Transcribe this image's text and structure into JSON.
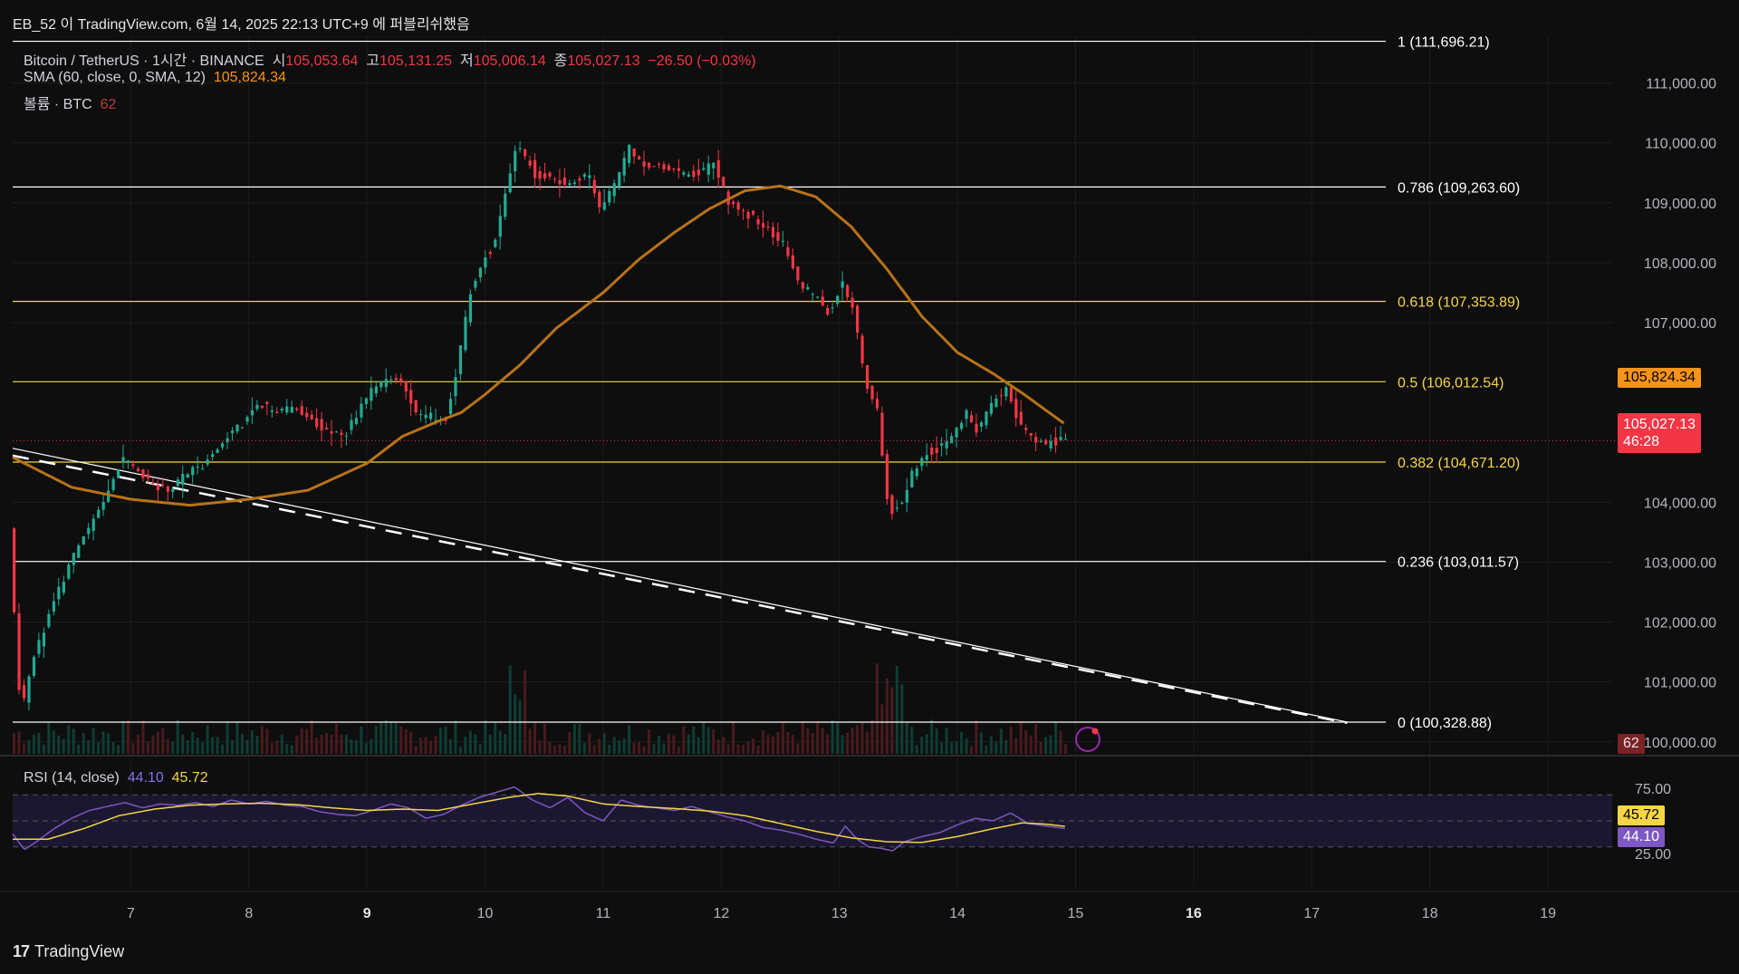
{
  "header": {
    "publisher": "EB_52 이 TradingView.com, 6월 14, 2025 22:13 UTC+9 에 퍼블리쉬했음"
  },
  "legend": {
    "symbol": "Bitcoin / TetherUS · 1시간 · BINANCE",
    "open_label": "시",
    "open": "105,053.64",
    "high_label": "고",
    "high": "105,131.25",
    "low_label": "저",
    "low": "105,006.14",
    "close_label": "종",
    "close": "105,027.13",
    "change": "−26.50 (−0.03%)",
    "sma_label": "SMA (60, close, 0, SMA, 12)",
    "sma_value": "105,824.34",
    "volume_label": "볼륨 · BTC",
    "volume_value": "62"
  },
  "rsi_legend": {
    "label": "RSI (14, close)",
    "rsi": "44.10",
    "rsi_ma": "45.72"
  },
  "tags": {
    "sma": "105,824.34",
    "price": "105,027.13",
    "countdown": "46:28",
    "volume": "62",
    "rsi_ma": "45.72",
    "rsi": "44.10"
  },
  "brand": {
    "name": "TradingView"
  },
  "colors": {
    "up": "#22ab94",
    "down": "#f23645",
    "sma": "#b8721a",
    "rsi": "#7e57c2",
    "rsi_ma": "#f5d547",
    "fib_white": "#ffffff",
    "fib_yellow": "#f5d547",
    "background": "#0e0e0e"
  },
  "chart_data": {
    "type": "candlestick",
    "price_axis": {
      "ticks": [
        "111,000.00",
        "110,000.00",
        "109,000.00",
        "108,000.00",
        "107,000.00",
        "104,000.00",
        "103,000.00",
        "102,000.00",
        "101,000.00",
        "100,000.00"
      ],
      "values": [
        111000,
        110000,
        109000,
        108000,
        107000,
        104000,
        103000,
        102000,
        101000,
        100000
      ]
    },
    "time_axis": {
      "ticks": [
        "7",
        "8",
        "9",
        "10",
        "11",
        "12",
        "13",
        "14",
        "15",
        "16",
        "17",
        "18",
        "19"
      ],
      "bold": [
        "9",
        "16"
      ]
    },
    "fibonacci": [
      {
        "label": "1 (111,696.21)",
        "level": 1,
        "price": 111696.21,
        "color": "white"
      },
      {
        "label": "0.786 (109,263.60)",
        "level": 0.786,
        "price": 109263.6,
        "color": "white"
      },
      {
        "label": "0.618 (107,353.89)",
        "level": 0.618,
        "price": 107353.89,
        "color": "yellow"
      },
      {
        "label": "0.5 (106,012.54)",
        "level": 0.5,
        "price": 106012.54,
        "color": "yellow"
      },
      {
        "label": "0.382 (104,671.20)",
        "level": 0.382,
        "price": 104671.2,
        "color": "yellow"
      },
      {
        "label": "0.236 (103,011.57)",
        "level": 0.236,
        "price": 103011.57,
        "color": "white"
      },
      {
        "label": "0 (100,328.88)",
        "level": 0,
        "price": 100328.88,
        "color": "white"
      }
    ],
    "current_price": 105027.13,
    "sma_value": 105824.34,
    "trendline": {
      "x_start": 6.0,
      "y_start": 104900,
      "x_end": 17.3,
      "y_end": 100330
    },
    "price_path": [
      [
        6.0,
        103500
      ],
      [
        6.1,
        100400
      ],
      [
        6.2,
        101400
      ],
      [
        6.35,
        102200
      ],
      [
        6.5,
        102900
      ],
      [
        6.65,
        103500
      ],
      [
        6.8,
        104000
      ],
      [
        6.95,
        104700
      ],
      [
        7.05,
        104600
      ],
      [
        7.2,
        104300
      ],
      [
        7.35,
        104200
      ],
      [
        7.5,
        104500
      ],
      [
        7.65,
        104600
      ],
      [
        7.8,
        105000
      ],
      [
        7.95,
        105300
      ],
      [
        8.1,
        105600
      ],
      [
        8.25,
        105500
      ],
      [
        8.4,
        105600
      ],
      [
        8.55,
        105400
      ],
      [
        8.7,
        105200
      ],
      [
        8.85,
        105150
      ],
      [
        9.0,
        105700
      ],
      [
        9.15,
        106000
      ],
      [
        9.3,
        106050
      ],
      [
        9.45,
        105500
      ],
      [
        9.6,
        105400
      ],
      [
        9.7,
        105400
      ],
      [
        9.8,
        106300
      ],
      [
        9.9,
        107500
      ],
      [
        10.0,
        108000
      ],
      [
        10.1,
        108300
      ],
      [
        10.2,
        109100
      ],
      [
        10.3,
        110000
      ],
      [
        10.45,
        109500
      ],
      [
        10.6,
        109400
      ],
      [
        10.75,
        109300
      ],
      [
        10.9,
        109500
      ],
      [
        11.0,
        108900
      ],
      [
        11.1,
        109200
      ],
      [
        11.25,
        109900
      ],
      [
        11.4,
        109600
      ],
      [
        11.55,
        109600
      ],
      [
        11.7,
        109450
      ],
      [
        11.85,
        109500
      ],
      [
        11.95,
        109700
      ],
      [
        12.1,
        109000
      ],
      [
        12.25,
        108800
      ],
      [
        12.4,
        108600
      ],
      [
        12.55,
        108300
      ],
      [
        12.7,
        107600
      ],
      [
        12.85,
        107400
      ],
      [
        12.95,
        107100
      ],
      [
        13.05,
        107700
      ],
      [
        13.15,
        107200
      ],
      [
        13.25,
        106000
      ],
      [
        13.35,
        105500
      ],
      [
        13.45,
        103800
      ],
      [
        13.55,
        104000
      ],
      [
        13.65,
        104500
      ],
      [
        13.75,
        104800
      ],
      [
        13.85,
        104900
      ],
      [
        14.0,
        105100
      ],
      [
        14.1,
        105500
      ],
      [
        14.2,
        105200
      ],
      [
        14.3,
        105600
      ],
      [
        14.45,
        105900
      ],
      [
        14.55,
        105300
      ],
      [
        14.65,
        105100
      ],
      [
        14.75,
        104950
      ],
      [
        14.85,
        105030
      ],
      [
        14.92,
        105027
      ]
    ],
    "sma_path": [
      [
        6.0,
        104750
      ],
      [
        6.5,
        104250
      ],
      [
        7.0,
        104050
      ],
      [
        7.5,
        103950
      ],
      [
        8.0,
        104050
      ],
      [
        8.5,
        104200
      ],
      [
        9.0,
        104650
      ],
      [
        9.3,
        105100
      ],
      [
        9.6,
        105350
      ],
      [
        9.8,
        105500
      ],
      [
        10.0,
        105800
      ],
      [
        10.3,
        106300
      ],
      [
        10.6,
        106900
      ],
      [
        11.0,
        107500
      ],
      [
        11.3,
        108050
      ],
      [
        11.6,
        108500
      ],
      [
        11.9,
        108900
      ],
      [
        12.2,
        109200
      ],
      [
        12.5,
        109280
      ],
      [
        12.8,
        109100
      ],
      [
        13.1,
        108600
      ],
      [
        13.4,
        107900
      ],
      [
        13.7,
        107100
      ],
      [
        14.0,
        106500
      ],
      [
        14.3,
        106150
      ],
      [
        14.55,
        105820
      ],
      [
        14.9,
        105320
      ]
    ],
    "rsi_axis": {
      "ticks": [
        "75.00",
        "25.00"
      ],
      "values": [
        75,
        25
      ],
      "bands": [
        70,
        50,
        30
      ]
    },
    "rsi_path": [
      [
        6.0,
        40
      ],
      [
        6.1,
        28
      ],
      [
        6.2,
        34
      ],
      [
        6.35,
        44
      ],
      [
        6.5,
        52
      ],
      [
        6.65,
        58
      ],
      [
        6.8,
        61
      ],
      [
        6.95,
        64
      ],
      [
        7.1,
        60
      ],
      [
        7.25,
        63
      ],
      [
        7.4,
        62
      ],
      [
        7.55,
        64
      ],
      [
        7.7,
        61
      ],
      [
        7.85,
        66
      ],
      [
        8.0,
        63
      ],
      [
        8.15,
        65
      ],
      [
        8.3,
        62
      ],
      [
        8.45,
        61
      ],
      [
        8.6,
        57
      ],
      [
        8.75,
        55
      ],
      [
        8.9,
        54
      ],
      [
        9.05,
        58
      ],
      [
        9.2,
        63
      ],
      [
        9.35,
        60
      ],
      [
        9.5,
        52
      ],
      [
        9.65,
        55
      ],
      [
        9.8,
        62
      ],
      [
        9.95,
        68
      ],
      [
        10.1,
        72
      ],
      [
        10.25,
        76
      ],
      [
        10.4,
        66
      ],
      [
        10.55,
        60
      ],
      [
        10.7,
        68
      ],
      [
        10.85,
        56
      ],
      [
        11.0,
        50
      ],
      [
        11.15,
        66
      ],
      [
        11.3,
        62
      ],
      [
        11.45,
        60
      ],
      [
        11.6,
        58
      ],
      [
        11.75,
        61
      ],
      [
        11.9,
        57
      ],
      [
        12.05,
        53
      ],
      [
        12.2,
        50
      ],
      [
        12.35,
        45
      ],
      [
        12.5,
        43
      ],
      [
        12.65,
        40
      ],
      [
        12.8,
        36
      ],
      [
        12.95,
        33
      ],
      [
        13.05,
        46
      ],
      [
        13.15,
        36
      ],
      [
        13.25,
        30
      ],
      [
        13.35,
        29
      ],
      [
        13.45,
        27
      ],
      [
        13.55,
        34
      ],
      [
        13.7,
        38
      ],
      [
        13.85,
        41
      ],
      [
        14.0,
        47
      ],
      [
        14.15,
        52
      ],
      [
        14.3,
        50
      ],
      [
        14.45,
        56
      ],
      [
        14.6,
        48
      ],
      [
        14.75,
        46
      ],
      [
        14.92,
        44.1
      ]
    ],
    "rsi_ma_path": [
      [
        6.0,
        36
      ],
      [
        6.3,
        36
      ],
      [
        6.6,
        44
      ],
      [
        6.9,
        54
      ],
      [
        7.2,
        59
      ],
      [
        7.5,
        62
      ],
      [
        7.8,
        63
      ],
      [
        8.1,
        63.5
      ],
      [
        8.4,
        62.5
      ],
      [
        8.7,
        60
      ],
      [
        9.0,
        58
      ],
      [
        9.3,
        59
      ],
      [
        9.6,
        58
      ],
      [
        9.9,
        63
      ],
      [
        10.2,
        68
      ],
      [
        10.45,
        71
      ],
      [
        10.7,
        69
      ],
      [
        11.0,
        63
      ],
      [
        11.3,
        61
      ],
      [
        11.6,
        59.5
      ],
      [
        11.9,
        57.5
      ],
      [
        12.2,
        54
      ],
      [
        12.5,
        48
      ],
      [
        12.8,
        42
      ],
      [
        13.1,
        37
      ],
      [
        13.4,
        34
      ],
      [
        13.7,
        33.5
      ],
      [
        14.0,
        38
      ],
      [
        14.3,
        44
      ],
      [
        14.55,
        48.5
      ],
      [
        14.75,
        47.5
      ],
      [
        14.92,
        45.7
      ]
    ]
  }
}
